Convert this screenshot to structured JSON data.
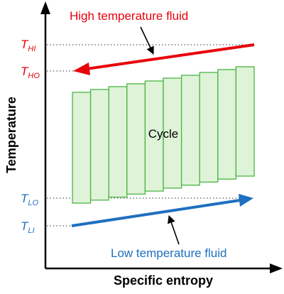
{
  "colors": {
    "hot": "#e8000b",
    "cold": "#1f6fc0",
    "bar_fill": "#dff3d8",
    "bar_stroke": "#4bb543",
    "axis": "#000000"
  },
  "axes": {
    "x_label": "Specific entropy",
    "y_label": "Temperature"
  },
  "levels": [
    {
      "id": "thi",
      "main": "T",
      "sub": "HI",
      "color": "#e8000b"
    },
    {
      "id": "tho",
      "main": "T",
      "sub": "HO",
      "color": "#e8000b"
    },
    {
      "id": "tlo",
      "main": "T",
      "sub": "LO",
      "color": "#1f6fc0"
    },
    {
      "id": "tli",
      "main": "T",
      "sub": "LI",
      "color": "#1f6fc0"
    }
  ],
  "labels": {
    "hot_fluid": "High temperature fluid",
    "cold_fluid": "Low temperature fluid",
    "cycle": "Cycle"
  },
  "cycle": {
    "bar_count": 10
  }
}
